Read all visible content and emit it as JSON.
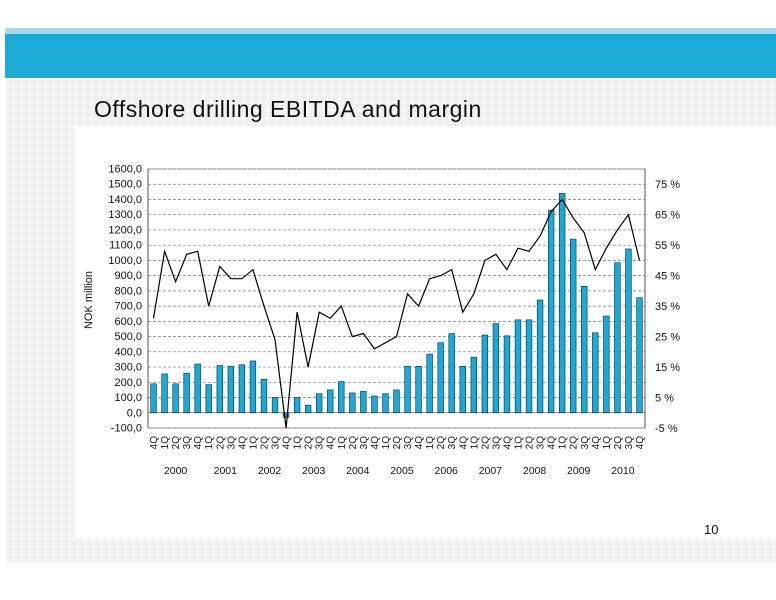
{
  "slide": {
    "title": "Offshore drilling EBITDA and margin",
    "page_number": "10"
  },
  "chart_data": {
    "type": "bar",
    "title": "Offshore drilling EBITDA and margin",
    "ylabel": "NOK million",
    "ylim": [
      -100,
      1600
    ],
    "y2lim": [
      -5,
      80
    ],
    "grid": true,
    "yticks": [
      "1600,0",
      "1500,0",
      "1400,0",
      "1300,0",
      "1200,0",
      "1100,0",
      "1000,0",
      "900,0",
      "800,0",
      "700,0",
      "600,0",
      "500,0",
      "400,0",
      "300,0",
      "200,0",
      "100,0",
      "0,0",
      "-100,0"
    ],
    "y2ticks": [
      "75 %",
      "65 %",
      "55 %",
      "45 %",
      "35 %",
      "25 %",
      "15 %",
      "5 %",
      "-5 %"
    ],
    "categories": [
      "4Q",
      "1Q",
      "2Q",
      "3Q",
      "4Q",
      "1Q",
      "2Q",
      "3Q",
      "4Q",
      "1Q",
      "2Q",
      "3Q",
      "4Q",
      "1Q",
      "2Q",
      "3Q",
      "4Q",
      "1Q",
      "2Q",
      "3Q",
      "4Q",
      "1Q",
      "2Q",
      "3Q",
      "4Q",
      "1Q",
      "2Q",
      "3Q",
      "4Q",
      "1Q",
      "2Q",
      "3Q",
      "4Q",
      "1Q",
      "2Q",
      "3Q",
      "4Q",
      "1Q",
      "2Q",
      "3Q",
      "4Q",
      "1Q",
      "2Q",
      "3Q",
      "4Q"
    ],
    "years": [
      "2000",
      "2001",
      "2002",
      "2003",
      "2004",
      "2005",
      "2006",
      "2007",
      "2008",
      "2009",
      "2010"
    ],
    "series": [
      {
        "type": "bar",
        "color": "#1ba9d6",
        "values": [
          190,
          255,
          190,
          260,
          320,
          185,
          310,
          305,
          315,
          340,
          220,
          100,
          -30,
          100,
          50,
          125,
          150,
          205,
          130,
          140,
          110,
          125,
          150,
          305,
          305,
          385,
          460,
          520,
          305,
          365,
          510,
          585,
          505,
          610,
          610,
          740,
          1330,
          1440,
          1140,
          830,
          525,
          635,
          985,
          1075,
          755
        ]
      },
      {
        "type": "line",
        "color": "#000000",
        "values": [
          31,
          53,
          43,
          52,
          53,
          35,
          48,
          44,
          44,
          47,
          35,
          24,
          -5,
          33,
          15,
          33,
          31,
          35,
          25,
          26,
          21,
          23,
          25,
          39,
          35,
          44,
          45,
          47,
          33,
          39,
          50,
          52,
          47,
          54,
          53,
          58,
          66,
          70,
          64,
          59,
          47,
          54,
          60,
          65,
          50
        ]
      }
    ]
  }
}
